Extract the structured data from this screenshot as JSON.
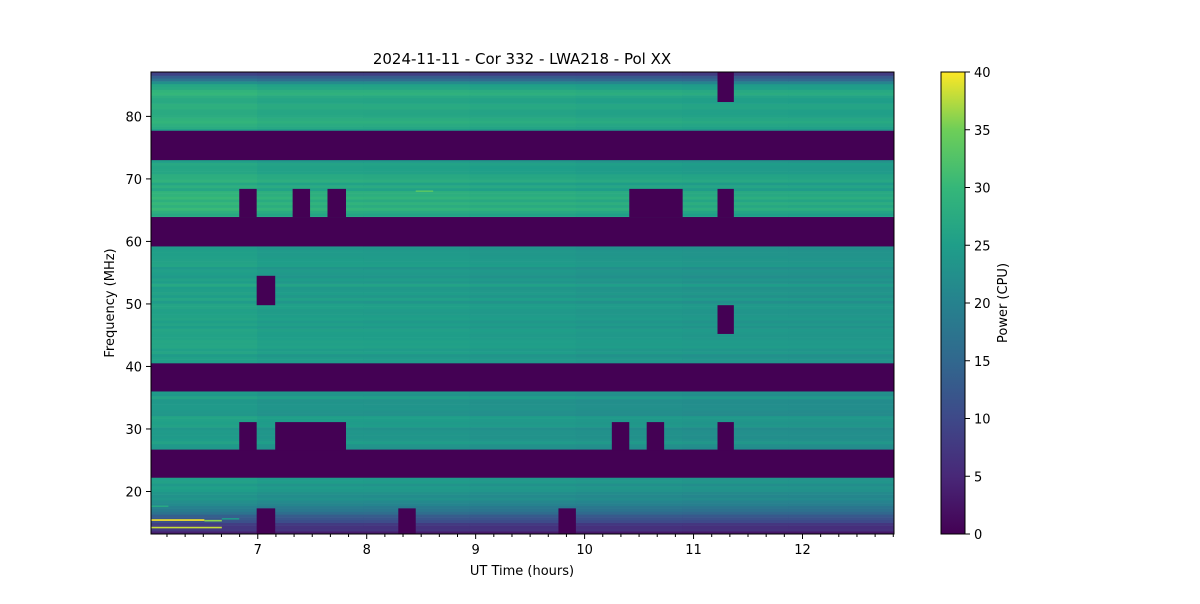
{
  "chart_data": {
    "type": "heatmap",
    "title": "2024-11-11 - Cor 332 - LWA218 - Pol XX",
    "xlabel": "UT Time (hours)",
    "ylabel": "Frequency (MHz)",
    "xlim": [
      6.02,
      12.84
    ],
    "ylim": [
      13.2,
      87.1
    ],
    "xticks": [
      7,
      8,
      9,
      10,
      11,
      12
    ],
    "xtick_labels": [
      "7",
      "8",
      "9",
      "10",
      "11",
      "12"
    ],
    "x_minor_step_hours": 0.1667,
    "yticks": [
      20,
      30,
      40,
      50,
      60,
      70,
      80
    ],
    "ytick_labels": [
      "20",
      "30",
      "40",
      "50",
      "60",
      "70",
      "80"
    ],
    "colormap": "viridis",
    "colorbar": {
      "label": "Power (CPU)",
      "clim": [
        0,
        40
      ],
      "ticks": [
        0,
        5,
        10,
        15,
        20,
        25,
        30,
        35,
        40
      ],
      "tick_labels": [
        "0",
        "5",
        "10",
        "15",
        "20",
        "25",
        "30",
        "35",
        "40"
      ]
    },
    "time_start_hours": 6.02,
    "time_step_hours": 0.1625,
    "n_times": 42,
    "mean_spectrum": {
      "freq_mhz": [
        13.2,
        14,
        15,
        16,
        17,
        18,
        19,
        20,
        21,
        22,
        27,
        28,
        29,
        30,
        31,
        32,
        33,
        34,
        35,
        36,
        41,
        42,
        44,
        46,
        48,
        50,
        52,
        54,
        56,
        58,
        59,
        64,
        65,
        66,
        67,
        68,
        69,
        70,
        71,
        72,
        73,
        78,
        79,
        80,
        81,
        82,
        83,
        84,
        85,
        86,
        87.1
      ],
      "power": [
        4,
        6,
        9,
        13,
        17,
        20,
        22,
        23,
        24,
        24,
        23,
        24,
        24,
        23,
        24,
        24,
        23,
        23,
        24,
        24,
        24,
        24,
        25,
        24,
        25,
        24,
        25,
        24,
        24,
        23,
        24,
        26,
        28,
        29,
        28,
        27,
        26,
        27,
        26,
        26,
        25,
        25,
        27,
        26,
        27,
        26,
        27,
        28,
        25,
        15,
        6
      ]
    },
    "masked_bands_mhz": [
      [
        73.0,
        77.7
      ],
      [
        59.2,
        63.9
      ],
      [
        36.0,
        40.5
      ],
      [
        22.2,
        26.7
      ]
    ],
    "flagged_blocks": [
      {
        "t": [
          11.22,
          11.37
        ],
        "f": [
          82.3,
          87.1
        ]
      },
      {
        "t": [
          6.83,
          6.99
        ],
        "f": [
          63.9,
          68.4
        ]
      },
      {
        "t": [
          7.32,
          7.48
        ],
        "f": [
          63.9,
          68.4
        ]
      },
      {
        "t": [
          7.64,
          7.81
        ],
        "f": [
          63.9,
          68.4
        ]
      },
      {
        "t": [
          10.41,
          10.9
        ],
        "f": [
          63.9,
          68.4
        ]
      },
      {
        "t": [
          11.22,
          11.37
        ],
        "f": [
          63.9,
          68.4
        ]
      },
      {
        "t": [
          6.99,
          7.16
        ],
        "f": [
          49.8,
          54.5
        ]
      },
      {
        "t": [
          11.22,
          11.37
        ],
        "f": [
          45.2,
          49.8
        ]
      },
      {
        "t": [
          6.83,
          6.99
        ],
        "f": [
          26.6,
          31.1
        ]
      },
      {
        "t": [
          7.16,
          7.81
        ],
        "f": [
          26.6,
          31.1
        ]
      },
      {
        "t": [
          10.25,
          10.41
        ],
        "f": [
          26.6,
          31.1
        ]
      },
      {
        "t": [
          10.57,
          10.73
        ],
        "f": [
          26.6,
          31.1
        ]
      },
      {
        "t": [
          11.22,
          11.37
        ],
        "f": [
          26.6,
          31.1
        ]
      },
      {
        "t": [
          6.99,
          7.16
        ],
        "f": [
          13.2,
          17.3
        ]
      },
      {
        "t": [
          8.29,
          8.45
        ],
        "f": [
          13.2,
          17.3
        ]
      },
      {
        "t": [
          9.76,
          9.92
        ],
        "f": [
          13.2,
          17.3
        ]
      }
    ],
    "rfi_lines": [
      {
        "f": 15.4,
        "t": [
          6.02,
          6.51
        ],
        "power": 40
      },
      {
        "f": 15.3,
        "t": [
          6.51,
          6.67
        ],
        "power": 36
      },
      {
        "f": 14.2,
        "t": [
          6.02,
          6.67
        ],
        "power": 38
      },
      {
        "f": 17.6,
        "t": [
          6.02,
          6.18
        ],
        "power": 27
      },
      {
        "f": 15.6,
        "t": [
          6.67,
          6.83
        ],
        "power": 24
      },
      {
        "f": 68.0,
        "t": [
          8.45,
          8.61
        ],
        "power": 33
      }
    ]
  }
}
